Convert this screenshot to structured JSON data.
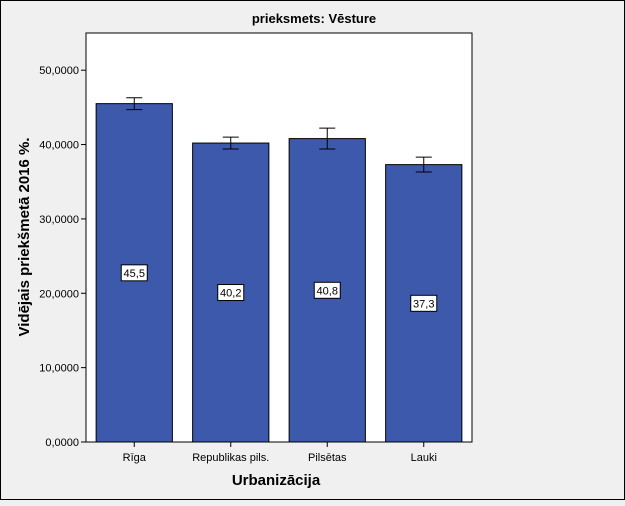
{
  "chart_data": {
    "type": "bar",
    "title": "prieksmets: Vēsture",
    "xlabel": "Urbanizācija",
    "ylabel": "Vidējais priekšmetā 2016 %.",
    "categories": [
      "Rīga",
      "Republikas pils.",
      "Pilsētas",
      "Lauki"
    ],
    "values": [
      45.5,
      40.2,
      40.8,
      37.3
    ],
    "data_labels": [
      "45,5",
      "40,2",
      "40,8",
      "37,3"
    ],
    "error_bars": [
      {
        "low": 44.7,
        "high": 46.3
      },
      {
        "low": 39.4,
        "high": 41.0
      },
      {
        "low": 39.4,
        "high": 42.2
      },
      {
        "low": 36.3,
        "high": 38.3
      }
    ],
    "ylim": [
      0,
      55
    ],
    "yticks": [
      0,
      10,
      20,
      30,
      40,
      50
    ],
    "ytick_labels": [
      "0,0000",
      "10,0000",
      "20,0000",
      "30,0000",
      "40,0000",
      "50,0000"
    ],
    "grid": false,
    "colors": {
      "bar": "#3d59ab",
      "background": "#f0f0f0",
      "plot": "#ffffff"
    }
  }
}
